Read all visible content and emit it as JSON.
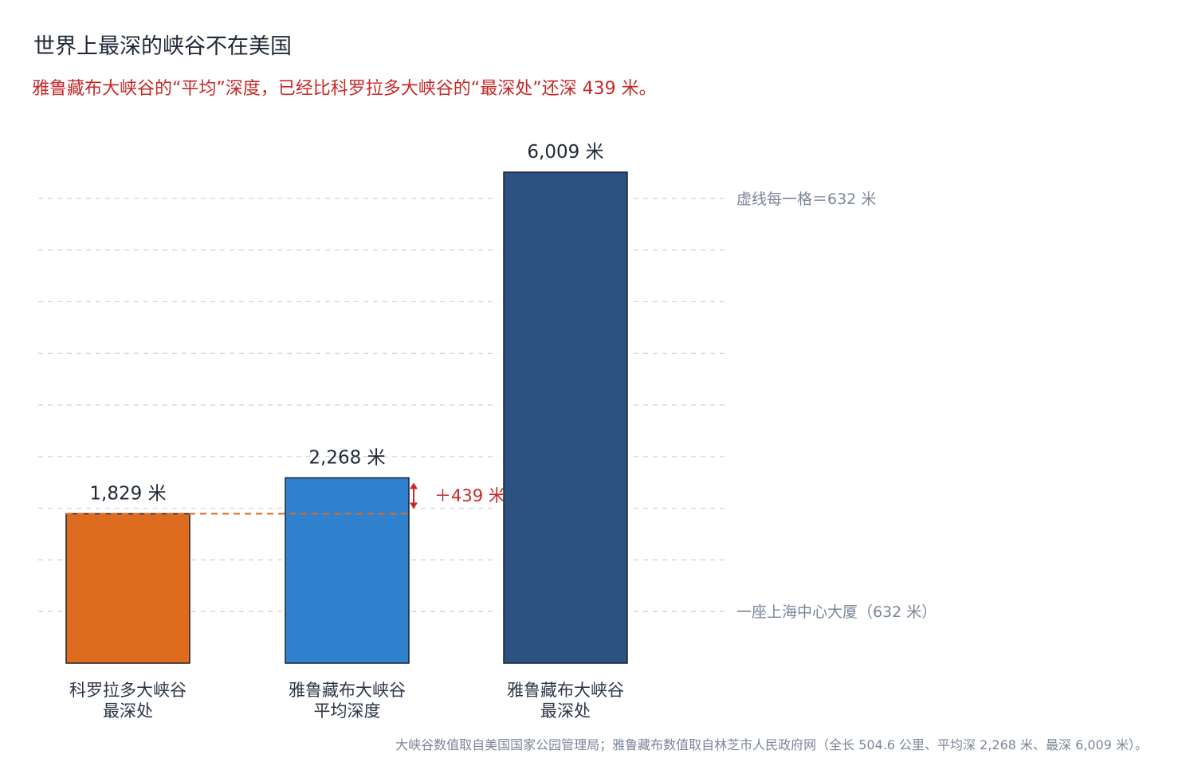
{
  "header": {
    "title": "世界上最深的峡谷不在美国",
    "subtitle": "雅鲁藏布大峡谷的“平均”深度，已经比科罗拉多大峡谷的“最深处”还深 439 米。"
  },
  "source": "大峡谷数值取自美国国家公园管理局；雅鲁藏布数值取自林芝市人民政府网（全长 504.6 公里、平均深 2,268 米、最深 6,009 米）。",
  "chart_data": {
    "type": "bar",
    "categories": [
      [
        "科罗拉多大峡谷",
        "最深处"
      ],
      [
        "雅鲁藏布大峡谷",
        "平均深度"
      ],
      [
        "雅鲁藏布大峡谷",
        "最深处"
      ]
    ],
    "values": [
      1829,
      2268,
      6009
    ],
    "value_labels": [
      "1,829 米",
      "2,268 米",
      "6,009 米"
    ],
    "colors": [
      "#dd6b20",
      "#3182ce",
      "#2c5282"
    ],
    "ylim": [
      0,
      6009
    ],
    "grid_step": 632,
    "grid_label": "虚线每一格＝632 米",
    "reference_label": "一座上海中心大厦（632 米）",
    "reference_value": 632,
    "difference": {
      "from": 1829,
      "to": 2268,
      "label": "＋439 米",
      "color": "#c62828"
    }
  }
}
